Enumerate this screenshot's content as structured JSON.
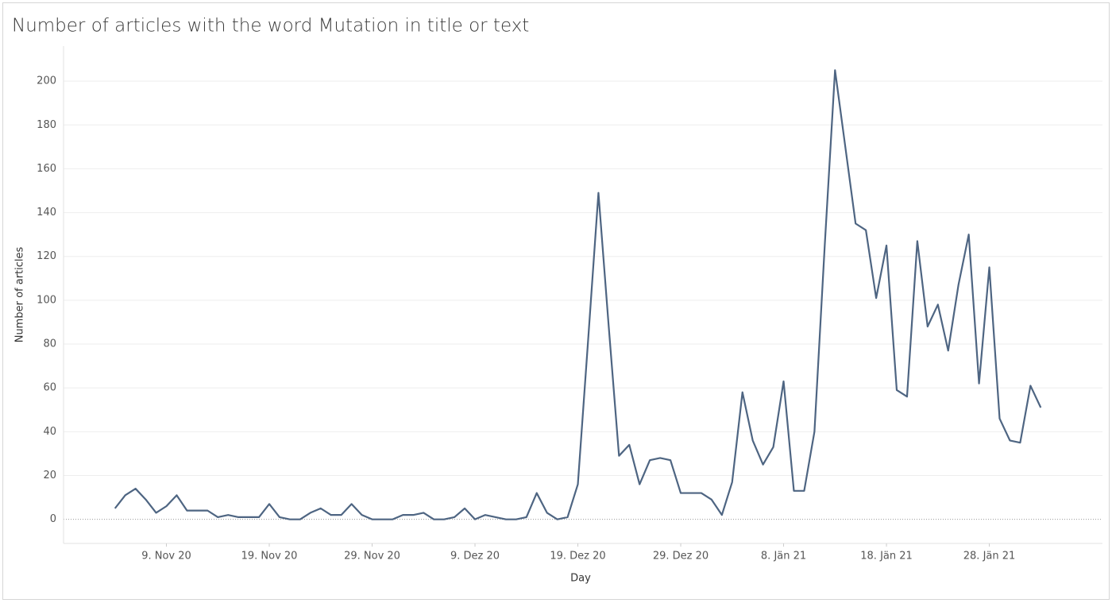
{
  "chart_data": {
    "type": "line",
    "title": "Number of articles with the word Mutation in title or text",
    "x_label": "Day",
    "y_label": "Number of articles",
    "color": "#4e6582",
    "grid": true,
    "x": [
      "2020-11-04",
      "2020-11-05",
      "2020-11-06",
      "2020-11-07",
      "2020-11-08",
      "2020-11-09",
      "2020-11-10",
      "2020-11-11",
      "2020-11-12",
      "2020-11-13",
      "2020-11-14",
      "2020-11-15",
      "2020-11-16",
      "2020-11-17",
      "2020-11-18",
      "2020-11-19",
      "2020-11-20",
      "2020-11-21",
      "2020-11-22",
      "2020-11-23",
      "2020-11-24",
      "2020-11-25",
      "2020-11-26",
      "2020-11-27",
      "2020-11-28",
      "2020-11-29",
      "2020-11-30",
      "2020-12-01",
      "2020-12-02",
      "2020-12-03",
      "2020-12-04",
      "2020-12-05",
      "2020-12-06",
      "2020-12-07",
      "2020-12-08",
      "2020-12-09",
      "2020-12-10",
      "2020-12-11",
      "2020-12-12",
      "2020-12-13",
      "2020-12-14",
      "2020-12-15",
      "2020-12-16",
      "2020-12-17",
      "2020-12-18",
      "2020-12-19",
      "2020-12-20",
      "2020-12-21",
      "2020-12-22",
      "2020-12-23",
      "2020-12-24",
      "2020-12-25",
      "2020-12-26",
      "2020-12-27",
      "2020-12-28",
      "2020-12-29",
      "2020-12-30",
      "2020-12-31",
      "2021-01-01",
      "2021-01-02",
      "2021-01-03",
      "2021-01-04",
      "2021-01-05",
      "2021-01-06",
      "2021-01-07",
      "2021-01-08",
      "2021-01-09",
      "2021-01-10",
      "2021-01-11",
      "2021-01-12",
      "2021-01-13",
      "2021-01-14",
      "2021-01-15",
      "2021-01-16",
      "2021-01-17",
      "2021-01-18",
      "2021-01-19",
      "2021-01-20",
      "2021-01-21",
      "2021-01-22",
      "2021-01-23",
      "2021-01-24",
      "2021-01-25",
      "2021-01-26",
      "2021-01-27",
      "2021-01-28",
      "2021-01-29",
      "2021-01-30",
      "2021-01-31",
      "2021-02-01",
      "2021-02-02"
    ],
    "values": [
      5,
      11,
      14,
      9,
      3,
      6,
      11,
      4,
      4,
      4,
      1,
      2,
      1,
      1,
      1,
      7,
      1,
      0,
      0,
      3,
      5,
      2,
      2,
      7,
      2,
      0,
      0,
      0,
      2,
      2,
      3,
      0,
      0,
      1,
      5,
      0,
      2,
      1,
      0,
      0,
      1,
      12,
      3,
      0,
      1,
      16,
      82,
      149,
      88,
      29,
      34,
      16,
      27,
      28,
      27,
      12,
      12,
      12,
      9,
      2,
      17,
      58,
      36,
      25,
      33,
      63,
      13,
      13,
      40,
      125,
      205,
      170,
      135,
      132,
      101,
      125,
      59,
      56,
      127,
      88,
      98,
      77,
      107,
      130,
      62,
      115,
      46,
      36,
      35,
      61,
      51
    ],
    "xlim": [
      "2020-10-30",
      "2021-02-08"
    ],
    "xticks": [
      {
        "value": "2020-11-09",
        "label": "9. Nov 20"
      },
      {
        "value": "2020-11-19",
        "label": "19. Nov 20"
      },
      {
        "value": "2020-11-29",
        "label": "29. Nov 20"
      },
      {
        "value": "2020-12-09",
        "label": "9. Dez 20"
      },
      {
        "value": "2020-12-19",
        "label": "19. Dez 20"
      },
      {
        "value": "2020-12-29",
        "label": "29. Dez 20"
      },
      {
        "value": "2021-01-08",
        "label": "8. Jän 21"
      },
      {
        "value": "2021-01-18",
        "label": "18. Jän 21"
      },
      {
        "value": "2021-01-28",
        "label": "28. Jän 21"
      }
    ],
    "ylim": [
      -11,
      216
    ],
    "yticks": [
      0,
      20,
      40,
      60,
      80,
      100,
      120,
      140,
      160,
      180,
      200
    ]
  }
}
